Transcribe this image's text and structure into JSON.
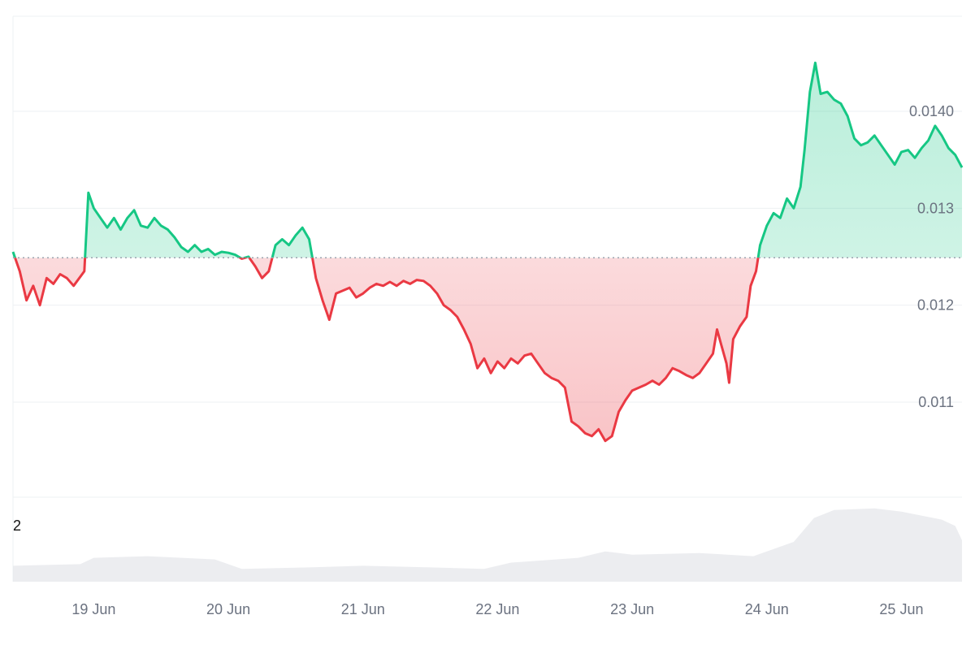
{
  "chart_data": {
    "type": "area",
    "x_ticks": [
      "19 Jun",
      "20 Jun",
      "21 Jun",
      "22 Jun",
      "23 Jun",
      "24 Jun",
      "25 Jun"
    ],
    "y_ticks": [
      "0.0140",
      "0.013",
      "0.012",
      "0.011"
    ],
    "y_tick_values": [
      0.014,
      0.013,
      0.012,
      0.011
    ],
    "ylim": [
      0.01,
      0.015
    ],
    "baseline": 0.01249,
    "volume_label": "2",
    "grid": true,
    "colors": {
      "up": "#16c784",
      "down": "#ea3943",
      "up_fill": "#16c784",
      "down_fill": "#ea3943",
      "volume": "#e5e7eb",
      "grid": "#eef0f3",
      "baseline": "#9ca3af"
    },
    "x_range": [
      18.4,
      25.45
    ],
    "price_points": [
      [
        18.4,
        0.01255
      ],
      [
        18.45,
        0.01235
      ],
      [
        18.5,
        0.01205
      ],
      [
        18.55,
        0.0122
      ],
      [
        18.6,
        0.012
      ],
      [
        18.65,
        0.01228
      ],
      [
        18.7,
        0.01222
      ],
      [
        18.75,
        0.01232
      ],
      [
        18.8,
        0.01228
      ],
      [
        18.85,
        0.0122
      ],
      [
        18.93,
        0.01235
      ],
      [
        18.96,
        0.01316
      ],
      [
        19.0,
        0.013
      ],
      [
        19.05,
        0.0129
      ],
      [
        19.1,
        0.0128
      ],
      [
        19.15,
        0.0129
      ],
      [
        19.2,
        0.01278
      ],
      [
        19.25,
        0.0129
      ],
      [
        19.3,
        0.01298
      ],
      [
        19.35,
        0.01282
      ],
      [
        19.4,
        0.0128
      ],
      [
        19.45,
        0.0129
      ],
      [
        19.5,
        0.01282
      ],
      [
        19.55,
        0.01278
      ],
      [
        19.6,
        0.0127
      ],
      [
        19.65,
        0.0126
      ],
      [
        19.7,
        0.01255
      ],
      [
        19.75,
        0.01262
      ],
      [
        19.8,
        0.01255
      ],
      [
        19.85,
        0.01258
      ],
      [
        19.9,
        0.01252
      ],
      [
        19.95,
        0.01255
      ],
      [
        20.0,
        0.01254
      ],
      [
        20.05,
        0.01252
      ],
      [
        20.1,
        0.01248
      ],
      [
        20.15,
        0.0125
      ],
      [
        20.2,
        0.0124
      ],
      [
        20.25,
        0.01228
      ],
      [
        20.3,
        0.01235
      ],
      [
        20.35,
        0.01262
      ],
      [
        20.4,
        0.01268
      ],
      [
        20.45,
        0.01262
      ],
      [
        20.5,
        0.01272
      ],
      [
        20.55,
        0.0128
      ],
      [
        20.6,
        0.01268
      ],
      [
        20.65,
        0.01228
      ],
      [
        20.7,
        0.01205
      ],
      [
        20.75,
        0.01185
      ],
      [
        20.8,
        0.01212
      ],
      [
        20.85,
        0.01215
      ],
      [
        20.9,
        0.01218
      ],
      [
        20.95,
        0.01208
      ],
      [
        21.0,
        0.01212
      ],
      [
        21.05,
        0.01218
      ],
      [
        21.1,
        0.01222
      ],
      [
        21.15,
        0.0122
      ],
      [
        21.2,
        0.01224
      ],
      [
        21.25,
        0.0122
      ],
      [
        21.3,
        0.01225
      ],
      [
        21.35,
        0.01222
      ],
      [
        21.4,
        0.01226
      ],
      [
        21.45,
        0.01225
      ],
      [
        21.5,
        0.0122
      ],
      [
        21.55,
        0.01212
      ],
      [
        21.6,
        0.012
      ],
      [
        21.65,
        0.01195
      ],
      [
        21.7,
        0.01188
      ],
      [
        21.75,
        0.01175
      ],
      [
        21.8,
        0.0116
      ],
      [
        21.85,
        0.01135
      ],
      [
        21.9,
        0.01145
      ],
      [
        21.95,
        0.0113
      ],
      [
        22.0,
        0.01142
      ],
      [
        22.05,
        0.01135
      ],
      [
        22.1,
        0.01145
      ],
      [
        22.15,
        0.0114
      ],
      [
        22.2,
        0.01148
      ],
      [
        22.25,
        0.0115
      ],
      [
        22.3,
        0.0114
      ],
      [
        22.35,
        0.0113
      ],
      [
        22.4,
        0.01125
      ],
      [
        22.45,
        0.01122
      ],
      [
        22.5,
        0.01115
      ],
      [
        22.55,
        0.0108
      ],
      [
        22.6,
        0.01075
      ],
      [
        22.65,
        0.01068
      ],
      [
        22.7,
        0.01065
      ],
      [
        22.75,
        0.01072
      ],
      [
        22.8,
        0.0106
      ],
      [
        22.85,
        0.01065
      ],
      [
        22.9,
        0.0109
      ],
      [
        22.95,
        0.01102
      ],
      [
        23.0,
        0.01112
      ],
      [
        23.05,
        0.01115
      ],
      [
        23.1,
        0.01118
      ],
      [
        23.15,
        0.01122
      ],
      [
        23.2,
        0.01118
      ],
      [
        23.25,
        0.01125
      ],
      [
        23.3,
        0.01135
      ],
      [
        23.35,
        0.01132
      ],
      [
        23.4,
        0.01128
      ],
      [
        23.45,
        0.01125
      ],
      [
        23.5,
        0.0113
      ],
      [
        23.55,
        0.0114
      ],
      [
        23.6,
        0.0115
      ],
      [
        23.63,
        0.01175
      ],
      [
        23.66,
        0.0116
      ],
      [
        23.7,
        0.0114
      ],
      [
        23.72,
        0.0112
      ],
      [
        23.75,
        0.01165
      ],
      [
        23.8,
        0.01178
      ],
      [
        23.85,
        0.01188
      ],
      [
        23.88,
        0.0122
      ],
      [
        23.92,
        0.01235
      ],
      [
        23.95,
        0.01262
      ],
      [
        24.0,
        0.01282
      ],
      [
        24.05,
        0.01295
      ],
      [
        24.1,
        0.0129
      ],
      [
        24.15,
        0.0131
      ],
      [
        24.2,
        0.013
      ],
      [
        24.25,
        0.01322
      ],
      [
        24.28,
        0.0136
      ],
      [
        24.32,
        0.0142
      ],
      [
        24.36,
        0.0145
      ],
      [
        24.4,
        0.01418
      ],
      [
        24.45,
        0.0142
      ],
      [
        24.5,
        0.01412
      ],
      [
        24.55,
        0.01408
      ],
      [
        24.6,
        0.01395
      ],
      [
        24.65,
        0.01372
      ],
      [
        24.7,
        0.01365
      ],
      [
        24.75,
        0.01368
      ],
      [
        24.8,
        0.01375
      ],
      [
        24.85,
        0.01365
      ],
      [
        24.9,
        0.01355
      ],
      [
        24.95,
        0.01345
      ],
      [
        25.0,
        0.01358
      ],
      [
        25.05,
        0.0136
      ],
      [
        25.1,
        0.01352
      ],
      [
        25.15,
        0.01362
      ],
      [
        25.2,
        0.0137
      ],
      [
        25.25,
        0.01385
      ],
      [
        25.3,
        0.01375
      ],
      [
        25.35,
        0.01362
      ],
      [
        25.4,
        0.01355
      ],
      [
        25.45,
        0.01342
      ]
    ],
    "volume_points": [
      [
        18.4,
        0.2
      ],
      [
        18.9,
        0.22
      ],
      [
        19.0,
        0.3
      ],
      [
        19.4,
        0.32
      ],
      [
        19.9,
        0.28
      ],
      [
        20.1,
        0.16
      ],
      [
        20.6,
        0.18
      ],
      [
        21.0,
        0.2
      ],
      [
        21.5,
        0.18
      ],
      [
        21.9,
        0.16
      ],
      [
        22.1,
        0.24
      ],
      [
        22.6,
        0.3
      ],
      [
        22.8,
        0.38
      ],
      [
        23.0,
        0.34
      ],
      [
        23.5,
        0.36
      ],
      [
        23.9,
        0.32
      ],
      [
        24.0,
        0.38
      ],
      [
        24.2,
        0.5
      ],
      [
        24.35,
        0.8
      ],
      [
        24.5,
        0.9
      ],
      [
        24.8,
        0.92
      ],
      [
        25.0,
        0.88
      ],
      [
        25.3,
        0.78
      ],
      [
        25.4,
        0.7
      ],
      [
        25.45,
        0.52
      ]
    ]
  }
}
